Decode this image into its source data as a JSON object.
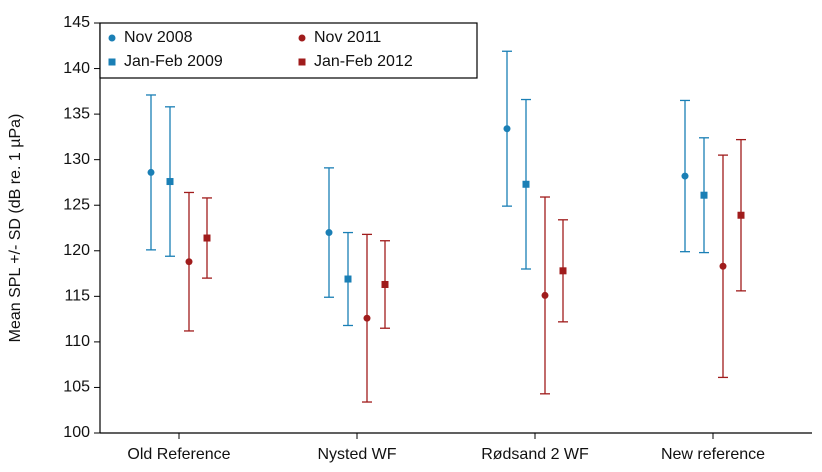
{
  "chart_data": {
    "type": "errorbar",
    "ylabel": "Mean SPL +/- SD (dB re. 1 µPa)",
    "categories": [
      "Old Reference",
      "Nysted WF",
      "Rødsand 2 WF",
      "New reference"
    ],
    "series": [
      {
        "name": "Nov 2008",
        "color": "#1a7fb5",
        "marker": "circle",
        "values": [
          128.6,
          122.0,
          133.4,
          128.2
        ],
        "errors": [
          8.5,
          7.1,
          8.5,
          8.3
        ]
      },
      {
        "name": "Jan-Feb 2009",
        "color": "#1a7fb5",
        "marker": "square",
        "values": [
          127.6,
          116.9,
          127.3,
          126.1
        ],
        "errors": [
          8.2,
          5.1,
          9.3,
          6.3
        ]
      },
      {
        "name": "Nov 2011",
        "color": "#a01c1c",
        "marker": "circle",
        "values": [
          118.8,
          112.6,
          115.1,
          118.3
        ],
        "errors": [
          7.6,
          9.2,
          10.8,
          12.2
        ]
      },
      {
        "name": "Jan-Feb 2012",
        "color": "#a01c1c",
        "marker": "square",
        "values": [
          121.4,
          116.3,
          117.8,
          123.9
        ],
        "errors": [
          4.4,
          4.8,
          5.6,
          8.3
        ]
      }
    ],
    "ylim": [
      100,
      145
    ],
    "yticks": [
      100,
      105,
      110,
      115,
      120,
      125,
      130,
      135,
      140,
      145
    ],
    "legend": "top-left"
  }
}
